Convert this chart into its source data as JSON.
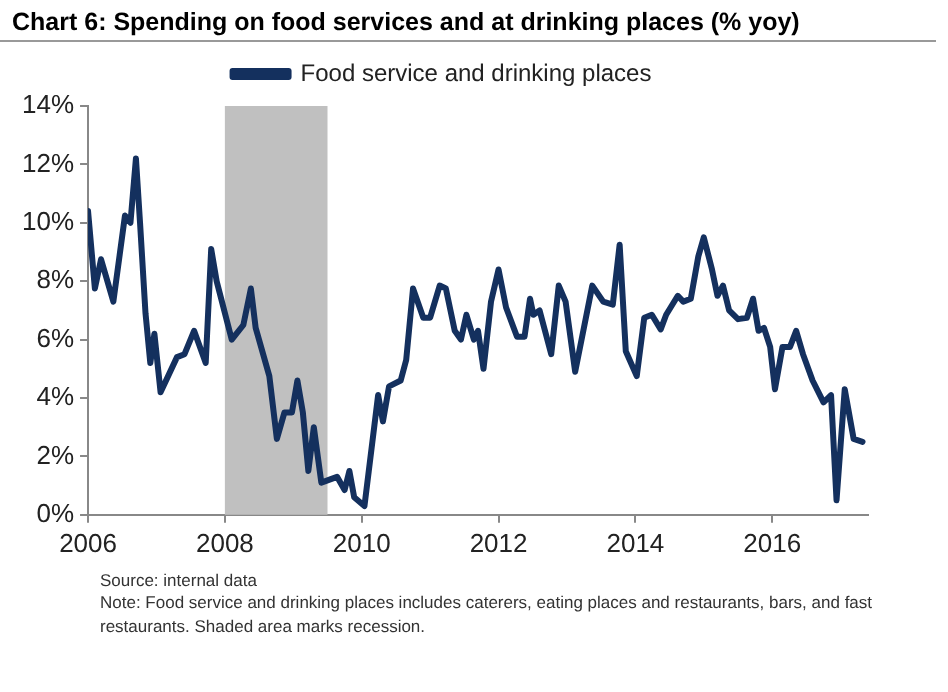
{
  "chart_data": {
    "type": "line",
    "title": "Chart 6: Spending on food services and at drinking places (% yoy)",
    "series": [
      {
        "name": "Food service and drinking places",
        "color": "#14305e",
        "x": [
          2006.0,
          2006.1,
          2006.19,
          2006.37,
          2006.54,
          2006.62,
          2006.7,
          2006.76,
          2006.84,
          2006.91,
          2006.97,
          2007.06,
          2007.3,
          2007.41,
          2007.55,
          2007.72,
          2007.8,
          2007.88,
          2008.1,
          2008.27,
          2008.38,
          2008.45,
          2008.65,
          2008.76,
          2008.87,
          2008.98,
          2009.06,
          2009.14,
          2009.22,
          2009.3,
          2009.41,
          2009.64,
          2009.75,
          2009.82,
          2009.89,
          2010.04,
          2010.24,
          2010.31,
          2010.4,
          2010.57,
          2010.65,
          2010.75,
          2010.9,
          2011.0,
          2011.14,
          2011.23,
          2011.36,
          2011.45,
          2011.53,
          2011.64,
          2011.7,
          2011.78,
          2011.89,
          2012.0,
          2012.11,
          2012.27,
          2012.38,
          2012.46,
          2012.51,
          2012.6,
          2012.77,
          2012.88,
          2012.98,
          2013.12,
          2013.37,
          2013.53,
          2013.67,
          2013.77,
          2013.86,
          2014.02,
          2014.13,
          2014.24,
          2014.37,
          2014.45,
          2014.62,
          2014.7,
          2014.81,
          2014.92,
          2015.0,
          2015.12,
          2015.2,
          2015.28,
          2015.37,
          2015.5,
          2015.63,
          2015.72,
          2015.8,
          2015.88,
          2015.97,
          2016.04,
          2016.15,
          2016.26,
          2016.35,
          2016.45,
          2016.59,
          2016.75,
          2016.86,
          2016.94,
          2017.06,
          2017.19,
          2017.32
        ],
        "values": [
          10.4,
          7.75,
          8.75,
          7.3,
          10.25,
          10.0,
          12.2,
          10.0,
          6.9,
          5.2,
          6.2,
          4.2,
          5.4,
          5.5,
          6.3,
          5.2,
          9.1,
          8.0,
          6.0,
          6.5,
          7.75,
          6.4,
          4.75,
          2.6,
          3.5,
          3.5,
          4.6,
          3.5,
          1.5,
          3.0,
          1.1,
          1.3,
          0.85,
          1.5,
          0.6,
          0.3,
          4.1,
          3.2,
          4.4,
          4.6,
          5.3,
          7.75,
          6.75,
          6.75,
          7.85,
          7.75,
          6.3,
          6.0,
          6.85,
          6.0,
          6.3,
          5.0,
          7.3,
          8.4,
          7.1,
          6.1,
          6.1,
          7.4,
          6.85,
          7.0,
          5.5,
          7.85,
          7.3,
          4.9,
          7.85,
          7.3,
          7.2,
          9.25,
          5.6,
          4.75,
          6.75,
          6.85,
          6.35,
          6.85,
          7.5,
          7.3,
          7.4,
          8.85,
          9.5,
          8.4,
          7.5,
          7.85,
          7.0,
          6.7,
          6.75,
          7.4,
          6.3,
          6.4,
          5.75,
          4.3,
          5.75,
          5.75,
          6.3,
          5.5,
          4.6,
          3.85,
          4.1,
          0.5,
          4.3,
          2.6,
          2.5
        ]
      }
    ],
    "xlim": [
      2006,
      2017.4
    ],
    "xticks": [
      2006,
      2008,
      2010,
      2012,
      2014,
      2016
    ],
    "ylim": [
      0,
      14
    ],
    "yticks": [
      {
        "value": 0,
        "label": "0%"
      },
      {
        "value": 2,
        "label": "2%"
      },
      {
        "value": 4,
        "label": "4%"
      },
      {
        "value": 6,
        "label": "6%"
      },
      {
        "value": 8,
        "label": "8%"
      },
      {
        "value": 10,
        "label": "10%"
      },
      {
        "value": 12,
        "label": "12%"
      },
      {
        "value": 14,
        "label": "14%"
      }
    ],
    "bands": [
      {
        "axis": "x",
        "from": 2008,
        "to": 2009.5,
        "color": "#c0c0c0"
      }
    ],
    "legend": "top",
    "marker": "none",
    "line_style": "solid",
    "grid": false,
    "annotations": [
      "Source: internal data",
      "Note: Food service and drinking places includes caterers, eating places and restaurants, bars, and fast restaurants. Shaded area marks recession."
    ]
  }
}
